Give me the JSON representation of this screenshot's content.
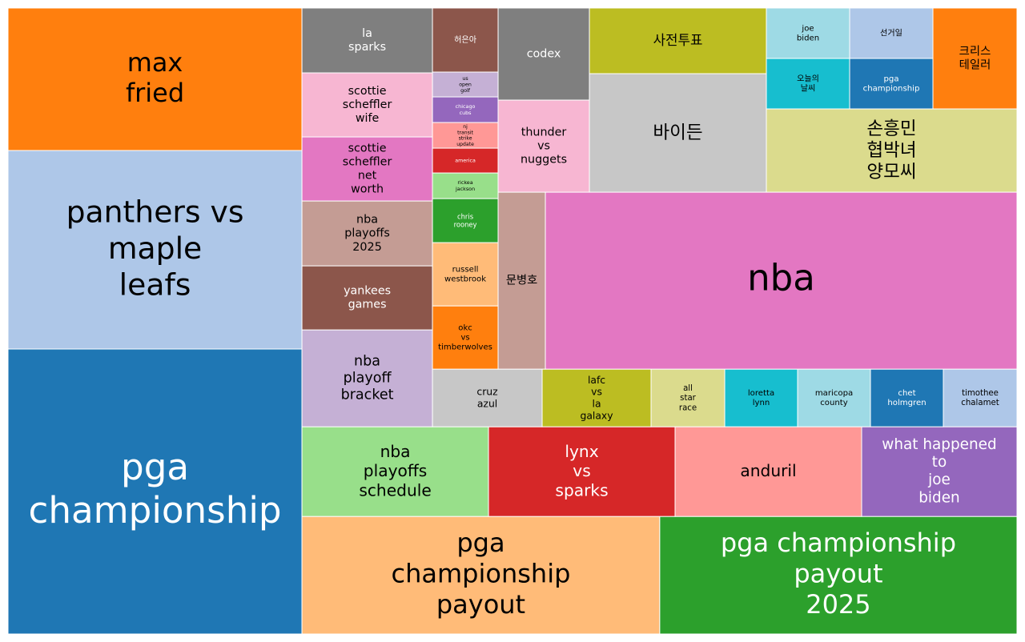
{
  "chart_data": {
    "type": "treemap",
    "categories": [
      "pga\nchampionship",
      "panthers vs\nmaple\nleafs",
      "max\nfried",
      "pga\nchampionship\npayout",
      "pga championship\npayout\n2025",
      "nba\nplayoffs\nschedule",
      "lynx\nvs\nsparks",
      "anduril",
      "what happened\nto\njoe\nbiden",
      "nba\nplayoff\nbracket",
      "yankees\ngames",
      "nba\nplayoffs\n2025",
      "scottie\nscheffler\nnet\nworth",
      "scottie\nscheffler\nwife",
      "la\nsparks",
      "cruz\nazul",
      "lafc\nvs\nla\ngalaxy",
      "all\nstar\nrace",
      "loretta\nlynn",
      "maricopa\ncounty",
      "chet\nholmgren",
      "timothee\nchalamet",
      "okc\nvs\ntimberwolves",
      "russell\nwestbrook",
      "chris\nrooney",
      "rickea\njackson",
      "america",
      "nj\ntransit\nstrike\nupdate",
      "chicago\ncubs",
      "us\nopen\ngolf",
      "허은아",
      "문병호",
      "nba",
      "thunder\nvs\nnuggets",
      "codex",
      "바이든",
      "사전투표",
      "손흥민\n협박녀\n양모씨",
      "오늘의\n날씨",
      "joe\nbiden",
      "pga\nchampionship",
      "선거일",
      "크리스\n테일러"
    ],
    "values": [
      130652,
      91016,
      65326,
      65600,
      65500,
      26096,
      26096,
      26096,
      21728,
      19723,
      13040,
      13203,
      13040,
      13040,
      13203,
      9864,
      9792,
      6624,
      6552,
      6552,
      6552,
      6624,
      6478,
      6478,
      4510,
      2624,
      2542,
      2624,
      2624,
      2542,
      6560,
      13039,
      130169,
      13110,
      13110,
      32708,
      18122,
      32552,
      6552,
      6552,
      6552,
      6552,
      13230
    ],
    "colors": [
      "#1f77b4",
      "#aec7e8",
      "#ff7f0e",
      "#ffbb78",
      "#2ca02c",
      "#98df8a",
      "#d62728",
      "#ff9896",
      "#9467bd",
      "#c5b0d5",
      "#8c564b",
      "#c49c94",
      "#e377c2",
      "#f7b6d2",
      "#7f7f7f",
      "#c7c7c7",
      "#bcbd22",
      "#dbdb8d",
      "#17becf",
      "#9edae5",
      "#1f77b4",
      "#aec7e8",
      "#ff7f0e",
      "#ffbb78",
      "#2ca02c",
      "#98df8a",
      "#d62728",
      "#ff9896",
      "#9467bd",
      "#c5b0d5",
      "#8c564b",
      "#c49c94",
      "#e377c2",
      "#f7b6d2",
      "#7f7f7f",
      "#c7c7c7",
      "#bcbd22",
      "#dbdb8d",
      "#17becf",
      "#9edae5",
      "#1f77b4",
      "#aec7e8",
      "#ff7f0e"
    ]
  }
}
